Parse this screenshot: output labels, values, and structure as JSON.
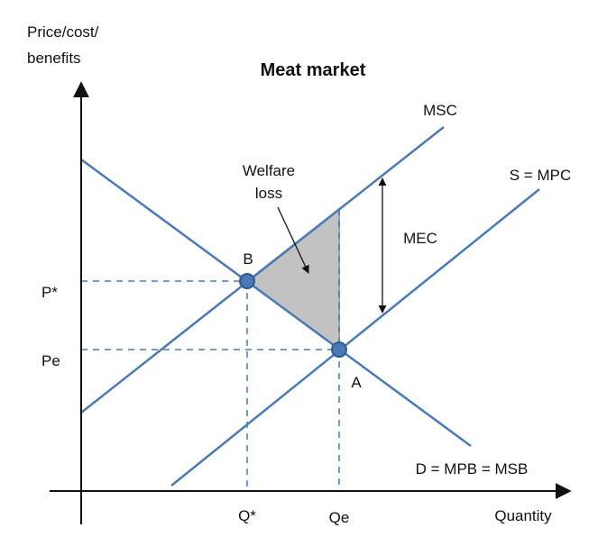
{
  "title": "Meat market",
  "axes": {
    "y_label_line1": "Price/cost/",
    "y_label_line2": "benefits",
    "x_label": "Quantity"
  },
  "curves": {
    "msc": "MSC",
    "supply": "S = MPC",
    "demand": "D = MPB = MSB"
  },
  "points": {
    "b": "B",
    "a": "A"
  },
  "prices": {
    "p_star": "P*",
    "pe": "Pe"
  },
  "quantities": {
    "q_star": "Q*",
    "qe": "Qe"
  },
  "annotations": {
    "welfare_line1": "Welfare",
    "welfare_line2": "loss",
    "mec": "MEC"
  },
  "colors": {
    "curve": "#4a7ab5",
    "point_fill": "#4a7ab5",
    "welfare_fill": "#c2c2c2",
    "axis": "#111111"
  }
}
